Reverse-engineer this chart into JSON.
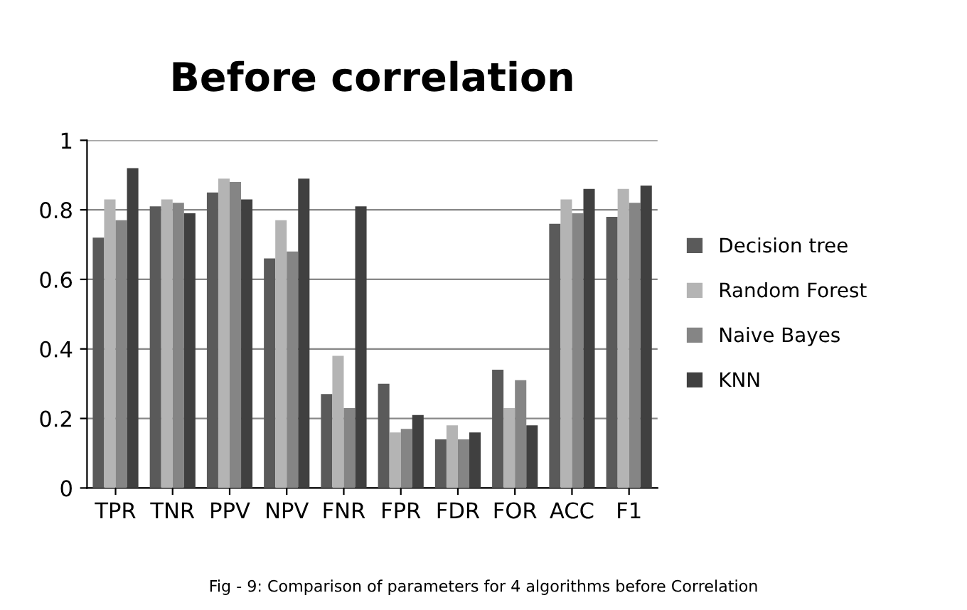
{
  "chart_data": {
    "type": "bar",
    "title": "Before correlation",
    "categories": [
      "TPR",
      "TNR",
      "PPV",
      "NPV",
      "FNR",
      "FPR",
      "FDR",
      "FOR",
      "ACC",
      "F1"
    ],
    "series": [
      {
        "name": "Decision tree",
        "color": "#5a5a5a",
        "values": [
          0.72,
          0.81,
          0.85,
          0.66,
          0.27,
          0.3,
          0.14,
          0.34,
          0.76,
          0.78
        ]
      },
      {
        "name": "Random Forest",
        "color": "#b4b4b4",
        "values": [
          0.83,
          0.83,
          0.89,
          0.77,
          0.38,
          0.16,
          0.18,
          0.23,
          0.83,
          0.86
        ]
      },
      {
        "name": "Naive Bayes",
        "color": "#858585",
        "values": [
          0.77,
          0.82,
          0.88,
          0.68,
          0.23,
          0.17,
          0.14,
          0.31,
          0.79,
          0.82
        ]
      },
      {
        "name": "KNN",
        "color": "#404040",
        "values": [
          0.92,
          0.79,
          0.83,
          0.89,
          0.81,
          0.21,
          0.16,
          0.18,
          0.86,
          0.87
        ]
      }
    ],
    "ylim": [
      0,
      1
    ],
    "yticks": [
      0,
      0.2,
      0.4,
      0.6,
      0.8,
      1
    ],
    "grid": "y",
    "legend": "right",
    "annotations": [
      "Fig - 9: Comparison of parameters for 4 algorithms before Correlation"
    ]
  }
}
